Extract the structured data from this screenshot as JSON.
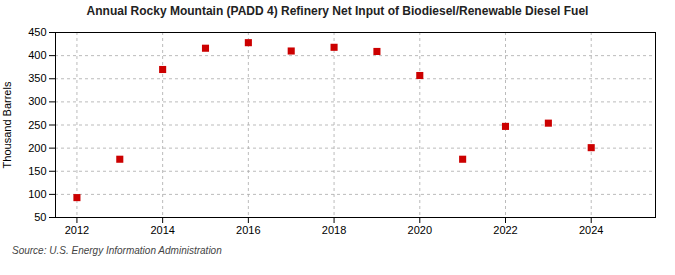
{
  "chart_data": {
    "type": "scatter",
    "title": "Annual Rocky Mountain (PADD 4) Refinery Net Input of Biodiesel/Renewable Diesel Fuel",
    "ylabel": "Thousand Barrels",
    "source": "Source: U.S. Energy Information Administration",
    "x": [
      2012,
      2013,
      2014,
      2015,
      2016,
      2017,
      2018,
      2019,
      2020,
      2021,
      2022,
      2023,
      2024
    ],
    "values": [
      93,
      176,
      370,
      416,
      428,
      410,
      418,
      409,
      357,
      176,
      247,
      254,
      201
    ],
    "color": "#cc0000",
    "marker": "square",
    "xlim": [
      2011.5,
      2025.5
    ],
    "ylim": [
      50,
      450
    ],
    "xticks": [
      2012,
      2014,
      2016,
      2018,
      2020,
      2022,
      2024
    ],
    "yticks": [
      50,
      100,
      150,
      200,
      250,
      300,
      350,
      400,
      450
    ],
    "grid": true
  }
}
